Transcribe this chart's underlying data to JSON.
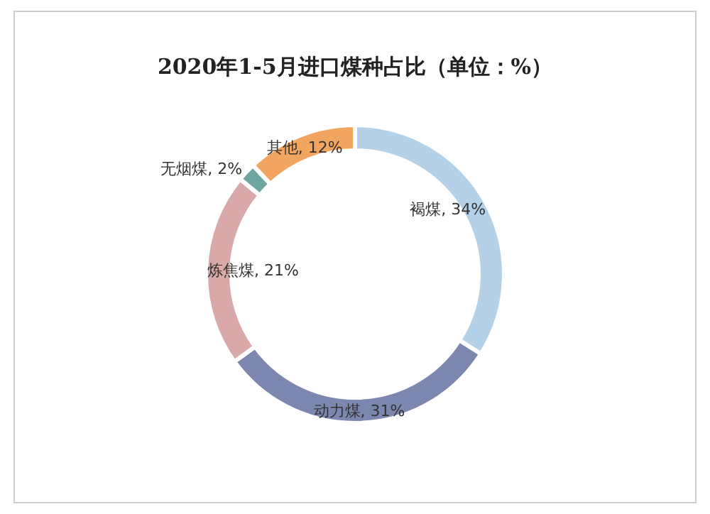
{
  "chart_data": {
    "type": "donut",
    "title": "2020年1-5月进口煤种占比（单位：%）",
    "categories": [
      "褐煤",
      "动力煤",
      "炼焦煤",
      "无烟煤",
      "其他"
    ],
    "values": [
      34,
      31,
      21,
      2,
      12
    ],
    "value_labels": [
      "34%",
      "31%",
      "21%",
      "2%",
      "12%"
    ],
    "colors": [
      "#b5d1e8",
      "#7c87b0",
      "#d9a9aa",
      "#6ea7a2",
      "#f2a55f"
    ]
  }
}
